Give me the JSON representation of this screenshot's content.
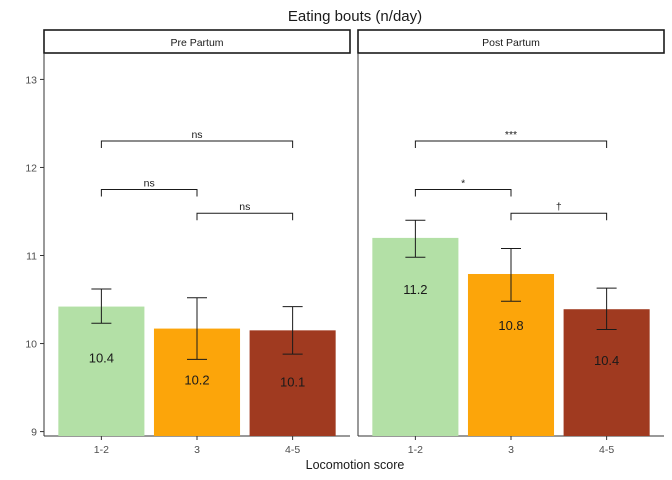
{
  "chart_data": {
    "type": "bar",
    "title": "Eating bouts (n/day)",
    "xlabel": "Locomotion score",
    "ylabel": "",
    "ylim": [
      8.95,
      13.3
    ],
    "yticks": [
      9,
      10,
      11,
      12,
      13
    ],
    "categories": [
      "1-2",
      "3",
      "4-5"
    ],
    "colors": [
      "#b3e0a6",
      "#fca50a",
      "#a03a20"
    ],
    "panels": [
      {
        "name": "Pre Partum",
        "values": [
          10.42,
          10.17,
          10.15
        ],
        "labels": [
          "10.4",
          "10.2",
          "10.1"
        ],
        "error_low": [
          10.23,
          9.82,
          9.88
        ],
        "error_high": [
          10.62,
          10.52,
          10.42
        ],
        "comparisons": [
          {
            "from": 0,
            "to": 1,
            "y": 11.75,
            "label": "ns"
          },
          {
            "from": 1,
            "to": 2,
            "y": 11.48,
            "label": "ns"
          },
          {
            "from": 0,
            "to": 2,
            "y": 12.3,
            "label": "ns"
          }
        ]
      },
      {
        "name": "Post Partum",
        "values": [
          11.2,
          10.79,
          10.39
        ],
        "labels": [
          "11.2",
          "10.8",
          "10.4"
        ],
        "error_low": [
          10.98,
          10.48,
          10.16
        ],
        "error_high": [
          11.4,
          11.08,
          10.63
        ],
        "comparisons": [
          {
            "from": 0,
            "to": 1,
            "y": 11.75,
            "label": "*"
          },
          {
            "from": 1,
            "to": 2,
            "y": 11.48,
            "label": "†"
          },
          {
            "from": 0,
            "to": 2,
            "y": 12.3,
            "label": "***"
          }
        ]
      }
    ]
  }
}
